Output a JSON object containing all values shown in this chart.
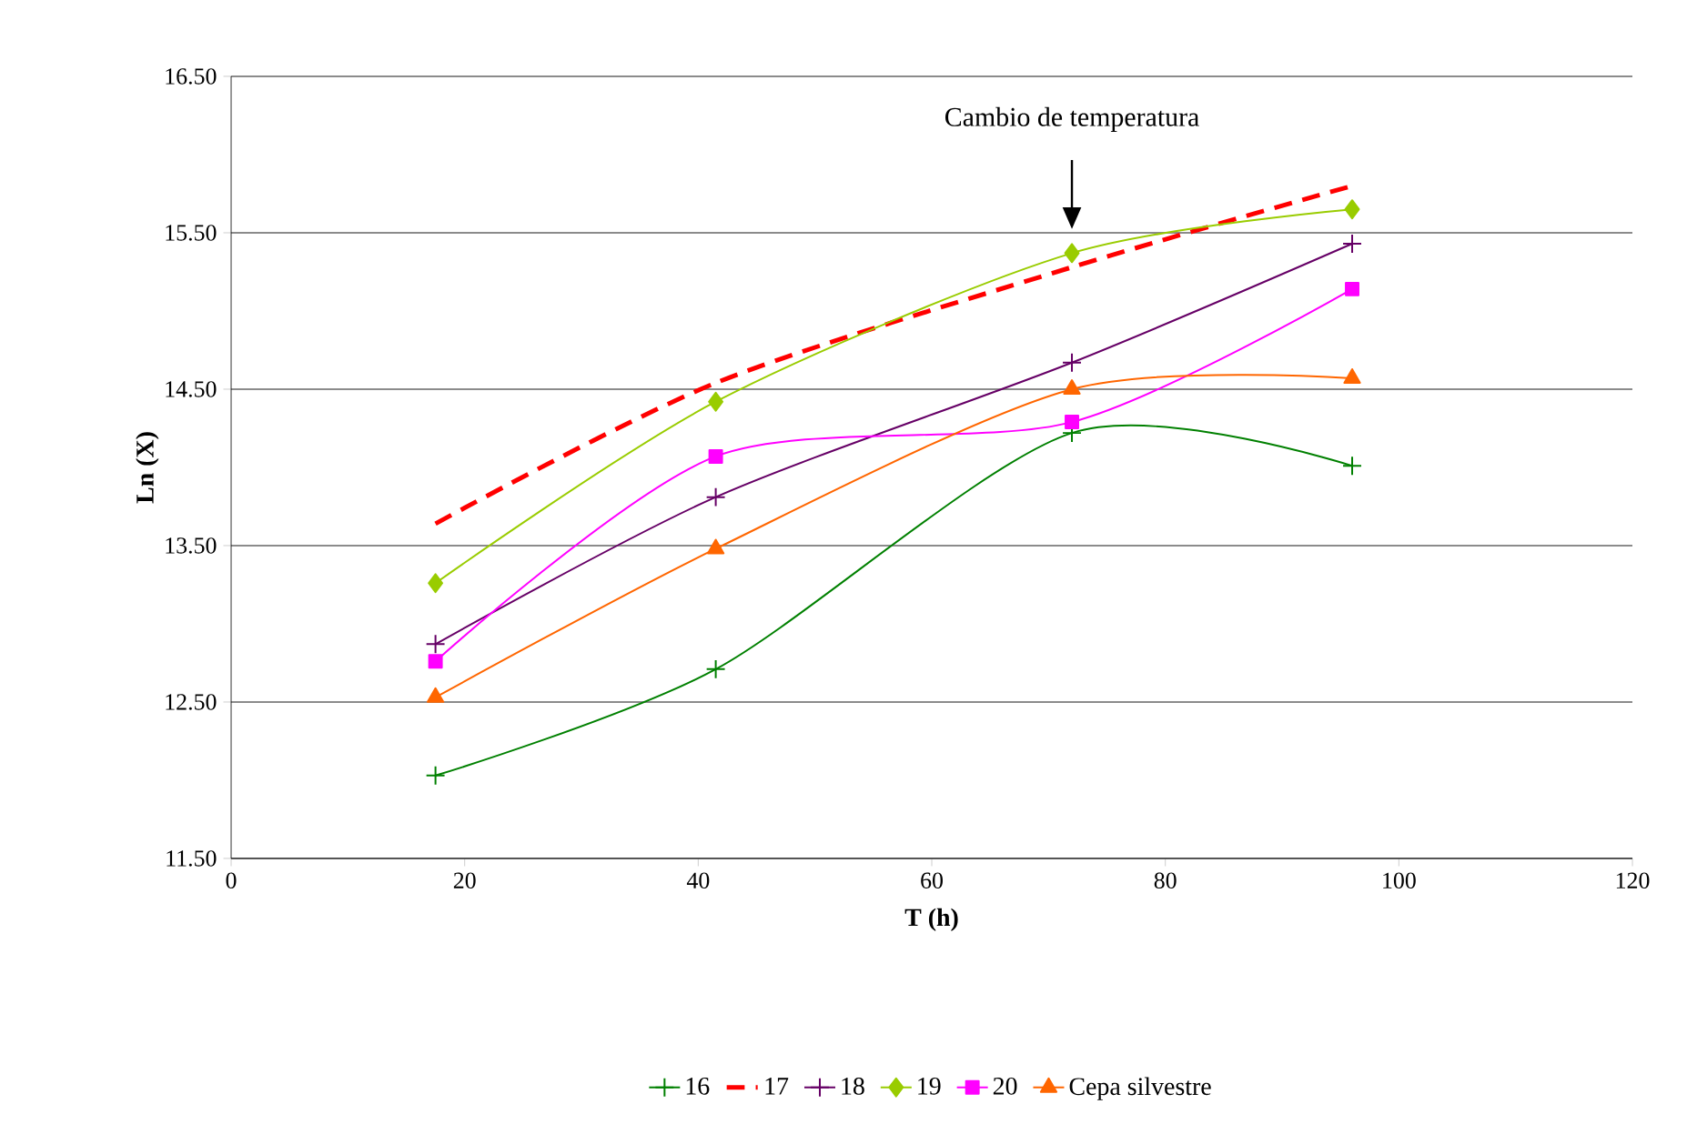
{
  "chart_data": {
    "type": "line",
    "xlabel": "T (h)",
    "ylabel": "Ln (X)",
    "annotations": [
      "Cambio de temperatura"
    ],
    "series": [
      {
        "name": "16",
        "color": "#008000",
        "marker": "cross",
        "line_style": "solid",
        "x": [
          17.5,
          41.5,
          72,
          96
        ],
        "values": [
          12.03,
          12.71,
          14.22,
          14.01
        ]
      },
      {
        "name": "17",
        "color": "#ff0000",
        "marker": "none",
        "line_style": "dashed",
        "x": [
          17.5,
          41.5,
          72,
          96
        ],
        "values": [
          13.64,
          14.54,
          15.28,
          15.8
        ]
      },
      {
        "name": "18",
        "color": "#660066",
        "marker": "cross",
        "line_style": "solid",
        "x": [
          17.5,
          41.5,
          72,
          96
        ],
        "values": [
          12.87,
          13.81,
          14.67,
          15.43
        ]
      },
      {
        "name": "19",
        "color": "#99cc00",
        "marker": "diamond",
        "line_style": "solid",
        "x": [
          17.5,
          41.5,
          72,
          96
        ],
        "values": [
          13.26,
          14.42,
          15.37,
          15.65
        ]
      },
      {
        "name": "20",
        "color": "#ff00ff",
        "marker": "square",
        "line_style": "solid",
        "x": [
          17.5,
          41.5,
          72,
          96
        ],
        "values": [
          12.76,
          14.07,
          14.29,
          15.14
        ]
      },
      {
        "name": "Cepa silvestre",
        "color": "#ff6600",
        "marker": "triangle",
        "line_style": "solid",
        "x": [
          17.5,
          41.5,
          72,
          96
        ],
        "values": [
          12.53,
          13.48,
          14.5,
          14.57
        ]
      }
    ],
    "xlim": [
      0,
      120
    ],
    "xticks": [
      0,
      20,
      40,
      60,
      80,
      100,
      120
    ],
    "ylim": [
      11.5,
      16.5
    ],
    "yticks": [
      {
        "value": 11.5,
        "label": "11.50"
      },
      {
        "value": 12.5,
        "label": "12.50"
      },
      {
        "value": 13.5,
        "label": "13.50"
      },
      {
        "value": 14.5,
        "label": "14.50"
      },
      {
        "value": 15.5,
        "label": "15.50"
      },
      {
        "value": 16.5,
        "label": "16.50"
      }
    ],
    "grid": "y",
    "legend": "bottom"
  }
}
